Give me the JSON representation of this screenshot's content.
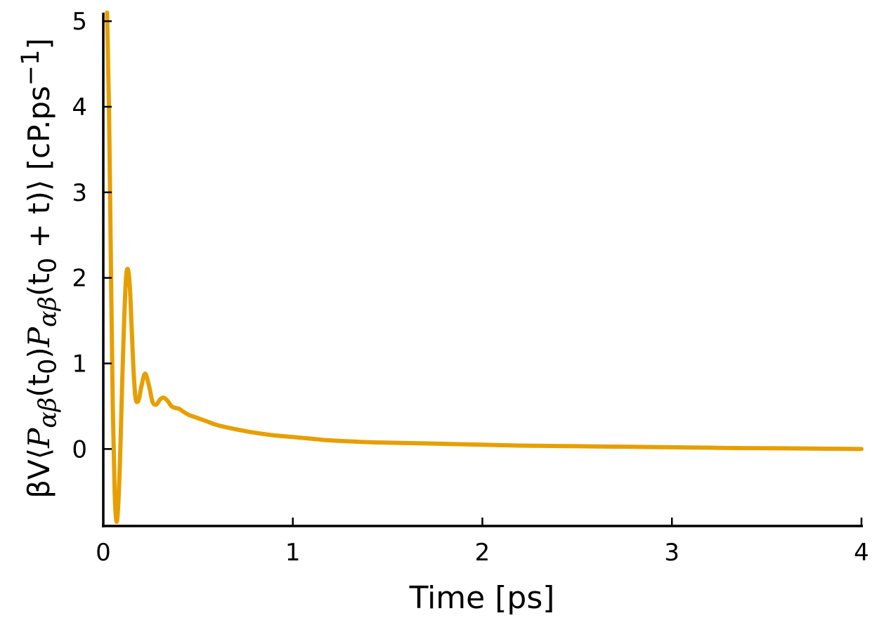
{
  "chart_data": {
    "type": "line",
    "title": "",
    "xlabel": "Time [ps]",
    "ylabel_parts": {
      "prefix": "βV⟨",
      "p1": "P",
      "sub1": "αβ",
      "t0a": "(t",
      "z1": "0",
      "close1": ")",
      "p2": "P",
      "sub2": "αβ",
      "t0b": "(t",
      "z2": "0",
      "plus": " + t)⟩",
      "unit": " [cP.ps",
      "exp": "−1",
      "unit_end": "]"
    },
    "xlim": [
      0,
      4
    ],
    "ylim": [
      -0.9,
      5.1
    ],
    "x_ticks": [
      0,
      1,
      2,
      3,
      4
    ],
    "x_tick_labels": [
      "0",
      "1",
      "2",
      "3",
      "4"
    ],
    "y_ticks": [
      0,
      1,
      2,
      3,
      4,
      5
    ],
    "y_tick_labels": [
      "0",
      "1",
      "2",
      "3",
      "4",
      "5"
    ],
    "grid": false,
    "legend": "none",
    "series": [
      {
        "color": "#e69f00",
        "x": [
          0.02,
          0.03,
          0.04,
          0.05,
          0.06,
          0.07,
          0.08,
          0.09,
          0.1,
          0.11,
          0.12,
          0.13,
          0.14,
          0.15,
          0.16,
          0.17,
          0.18,
          0.19,
          0.2,
          0.22,
          0.24,
          0.26,
          0.28,
          0.3,
          0.32,
          0.34,
          0.36,
          0.38,
          0.4,
          0.42,
          0.45,
          0.5,
          0.55,
          0.6,
          0.7,
          0.8,
          0.9,
          1.0,
          1.1,
          1.2,
          1.4,
          1.6,
          1.8,
          2.0,
          2.2,
          2.4,
          2.6,
          2.8,
          3.0,
          3.2,
          3.4,
          3.6,
          3.8,
          4.0
        ],
        "y": [
          5.1,
          4.0,
          2.2,
          0.5,
          -0.5,
          -0.85,
          -0.6,
          0.0,
          0.8,
          1.5,
          2.0,
          2.1,
          1.9,
          1.4,
          0.9,
          0.6,
          0.55,
          0.6,
          0.72,
          0.88,
          0.75,
          0.55,
          0.52,
          0.58,
          0.6,
          0.56,
          0.5,
          0.48,
          0.47,
          0.44,
          0.4,
          0.36,
          0.32,
          0.28,
          0.23,
          0.19,
          0.16,
          0.14,
          0.12,
          0.1,
          0.08,
          0.07,
          0.06,
          0.05,
          0.04,
          0.035,
          0.03,
          0.025,
          0.02,
          0.015,
          0.01,
          0.008,
          0.004,
          0.0
        ]
      }
    ]
  }
}
